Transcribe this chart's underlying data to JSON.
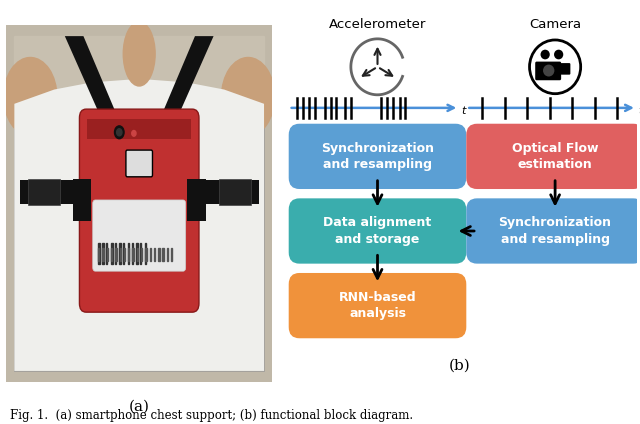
{
  "caption": "Fig. 1.  (a) smartphone chest support; (b) functional block diagram.",
  "label_a": "(a)",
  "label_b": "(b)",
  "accel_label": "Accelerometer",
  "camera_label": "Camera",
  "box1_text": "Synchronization\nand resampling",
  "box2_text": "Data alignment\nand storage",
  "box3_text": "RNN-based\nanalysis",
  "box4_text": "Optical Flow\nestimation",
  "box5_text": "Synchronization\nand resampling",
  "box1_color": "#5b9fd4",
  "box2_color": "#3aadad",
  "box3_color": "#f0923b",
  "box4_color": "#e06060",
  "box5_color": "#5b9fd4",
  "timeline_color": "#4a90d9",
  "fig_bg": "#ffffff",
  "photo_bg": "#c8bfb0",
  "shirt_color": "#f0eeeb",
  "skin_color": "#c8a07a",
  "strap_color": "#1a1a1a",
  "phone_color": "#b83030",
  "label_color": "#e8e8e8"
}
